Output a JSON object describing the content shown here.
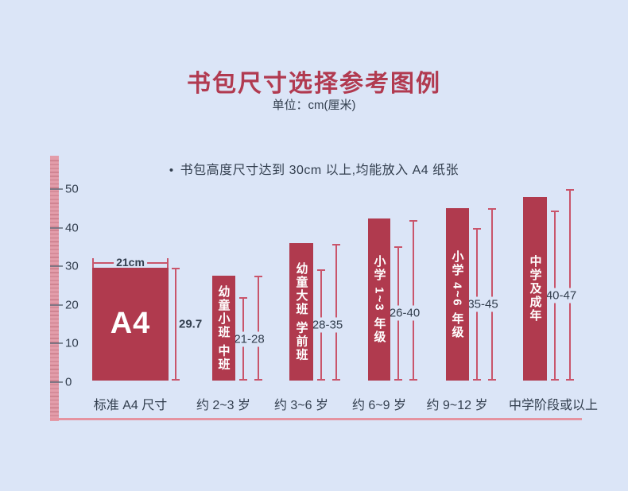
{
  "page": {
    "title": "书包尺寸选择参考图例",
    "subtitle": "单位：cm(厘米)",
    "note_bullet": "•",
    "note": "书包高度尺寸达到 30cm 以上,均能放入 A4 纸张"
  },
  "colors": {
    "background": "#dbe5f7",
    "bar": "#b03a4e",
    "title": "#b13a50",
    "dimension_line": "#c9556b",
    "ruler": "#e39daa",
    "ruler_tick": "#c87a88",
    "baseline": "#e593a0",
    "text_dark": "#323e4e",
    "bar_text": "#ffffff"
  },
  "chart_data": {
    "type": "bar",
    "title": "书包尺寸选择参考图例",
    "subtitle": "单位：cm(厘米)",
    "note": "书包高度尺寸达到 30cm 以上,均能放入 A4 纸张",
    "unit": "cm",
    "ylim": [
      0,
      50
    ],
    "y_ticks": [
      0,
      10,
      20,
      30,
      40,
      50
    ],
    "grid": false,
    "categories": [
      "标准 A4 尺寸",
      "约 2~3 岁",
      "约 3~6 岁",
      "约 6~9 岁",
      "约 9~12 岁",
      "中学阶段或以上"
    ],
    "bars": [
      {
        "category": "标准 A4 尺寸",
        "label": "A4",
        "width_cm": 21,
        "height_cm": 29.7,
        "width_label": "21cm",
        "height_label": "29.7",
        "bar_top": 29.7
      },
      {
        "category": "约 2~3 岁",
        "group_label": "幼童小班 中班",
        "range_label": "21-28",
        "min": 21,
        "max": 28,
        "bar_top": 27.5,
        "inner_top": 22,
        "outer_top": 27.5
      },
      {
        "category": "约 3~6 岁",
        "group_label": "幼童大班 学前班",
        "range_label": "28-35",
        "min": 28,
        "max": 35,
        "bar_top": 36,
        "inner_top": 29.2,
        "outer_top": 35.8
      },
      {
        "category": "约 6~9 岁",
        "group_label": "小学 1~3 年级",
        "range_label": "26-40",
        "min": 26,
        "max": 40,
        "bar_top": 42.4,
        "inner_top": 35.2,
        "outer_top": 42
      },
      {
        "category": "约 9~12 岁",
        "group_label": "小学 4~6 年级",
        "range_label": "35-45",
        "min": 35,
        "max": 45,
        "bar_top": 45,
        "inner_top": 40,
        "outer_top": 45
      },
      {
        "category": "中学阶段或以上",
        "group_label": "中学及成年",
        "range_label": "40-47",
        "min": 40,
        "max": 47,
        "bar_top": 48,
        "inner_top": 44.5,
        "outer_top": 50
      }
    ]
  }
}
